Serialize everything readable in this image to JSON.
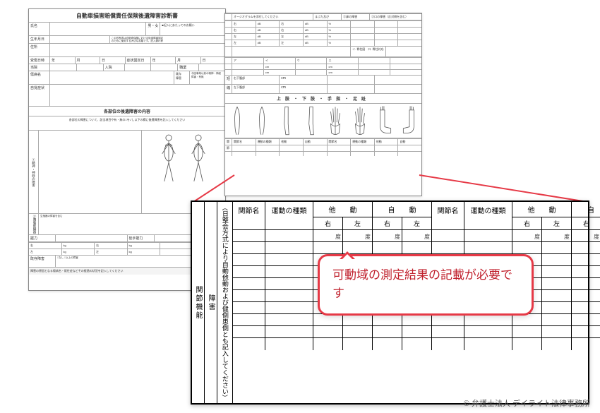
{
  "doc_title": "自動車損害賠償責任保険後遺障害診断書",
  "page1": {
    "labels": [
      "氏名",
      "生年月日",
      "住所",
      "受傷日時",
      "年",
      "月",
      "日",
      "症状固定日",
      "職業",
      "傷病名",
      "自覚症状",
      "各部位の後遺障害の内容"
    ],
    "section_note": "各部位の障害について、該当項目や有・無の□を✓し以下の欄に後遺障害を記入してください",
    "side_labels": [
      "①精神・神経の障害",
      "②胸腹部臓器"
    ],
    "bottom_labels": [
      "握力",
      "握力",
      "既存障害"
    ],
    "foot_note": "障害の原因となる傷病名・既往症などその経過の状況を記入してください"
  },
  "page2": {
    "top_labels": [
      "オージオグラムを添付してください",
      "まぶた及び",
      "②鼻の障害",
      "③口の障害（反対側を含む）"
    ],
    "rows": [
      "右",
      "右",
      "左",
      "左",
      "左",
      "右",
      "右",
      "右下腹部",
      "左下腹部"
    ],
    "section": "上肢・下肢・手指・足趾",
    "lower_label": "関節名　運動の種類"
  },
  "joint_table": {
    "side1": "関節機能",
    "side2": "障害",
    "side_note": "日整会方式により自動他動および健側患側とも記入してください",
    "headers": {
      "name": "関節名",
      "type": "運動の種類",
      "other_motion": "他　　動",
      "self_motion": "自　　動",
      "right": "右",
      "left": "左"
    },
    "unit": "度",
    "row_count": 10
  },
  "callout_text": "可動域の測定結果の記載が必要です",
  "copyright": "© 弁護士法人 デイライト法律事務所",
  "colors": {
    "accent_red": "#e63946",
    "text_red": "#c0202c",
    "line": "#000000",
    "subline": "#aaaaaa"
  }
}
